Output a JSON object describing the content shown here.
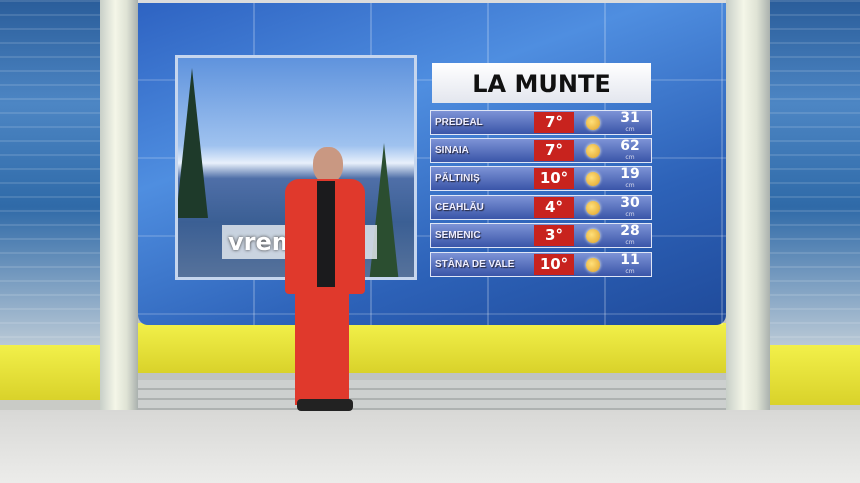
{
  "board": {
    "title": "LA MUNTE",
    "rows": [
      {
        "location": "PREDEAL",
        "temperature": "7°",
        "weather_icon": "sun-icon",
        "snow": "31",
        "unit": "cm"
      },
      {
        "location": "SINAIA",
        "temperature": "7°",
        "weather_icon": "sun-icon",
        "snow": "62",
        "unit": "cm"
      },
      {
        "location": "PĂLTINIȘ",
        "temperature": "10°",
        "weather_icon": "sun-icon",
        "snow": "19",
        "unit": "cm"
      },
      {
        "location": "CEAHLĂU",
        "temperature": "4°",
        "weather_icon": "sun-icon",
        "snow": "30",
        "unit": "cm"
      },
      {
        "location": "SEMENIC",
        "temperature": "3°",
        "weather_icon": "sun-icon",
        "snow": "28",
        "unit": "cm"
      },
      {
        "location": "STÂNA DE VALE",
        "temperature": "10°",
        "weather_icon": "sun-icon",
        "snow": "11",
        "unit": "cm"
      }
    ]
  },
  "photo_logo": "vrem",
  "colors": {
    "temp_box": "#c8231e",
    "jacket": "#e0392c",
    "screen": "#3a72cc"
  }
}
